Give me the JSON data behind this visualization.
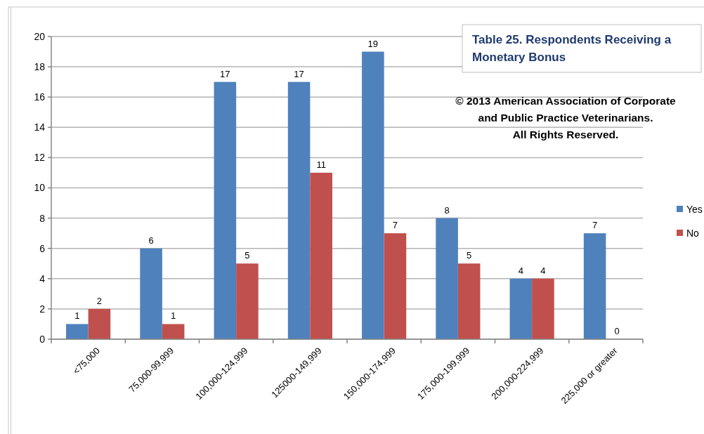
{
  "chart_data": {
    "type": "bar",
    "title": "Table 25. Respondents Receiving a\nMonetary Bonus",
    "annotations": [
      "© 2013 American Association of Corporate\nand Public Practice Veterinarians.\nAll Rights Reserved."
    ],
    "categories": [
      "<75,000",
      "75,000-99,999",
      "100,000-124,999",
      "125000-149,999",
      "150,000-174,999",
      "175,000-199,999",
      "200,000-224,999",
      "225,000 or greater"
    ],
    "series": [
      {
        "name": "Yes",
        "color": "#4f81bd",
        "values": [
          1,
          6,
          17,
          17,
          19,
          8,
          4,
          7
        ]
      },
      {
        "name": "No",
        "color": "#c0504d",
        "values": [
          2,
          1,
          5,
          11,
          7,
          5,
          4,
          0
        ]
      }
    ],
    "ylim": [
      0,
      20
    ],
    "yticks": [
      0,
      2,
      4,
      6,
      8,
      10,
      12,
      14,
      16,
      18,
      20
    ],
    "grid": "y",
    "legend": "right",
    "data_labels": true
  }
}
